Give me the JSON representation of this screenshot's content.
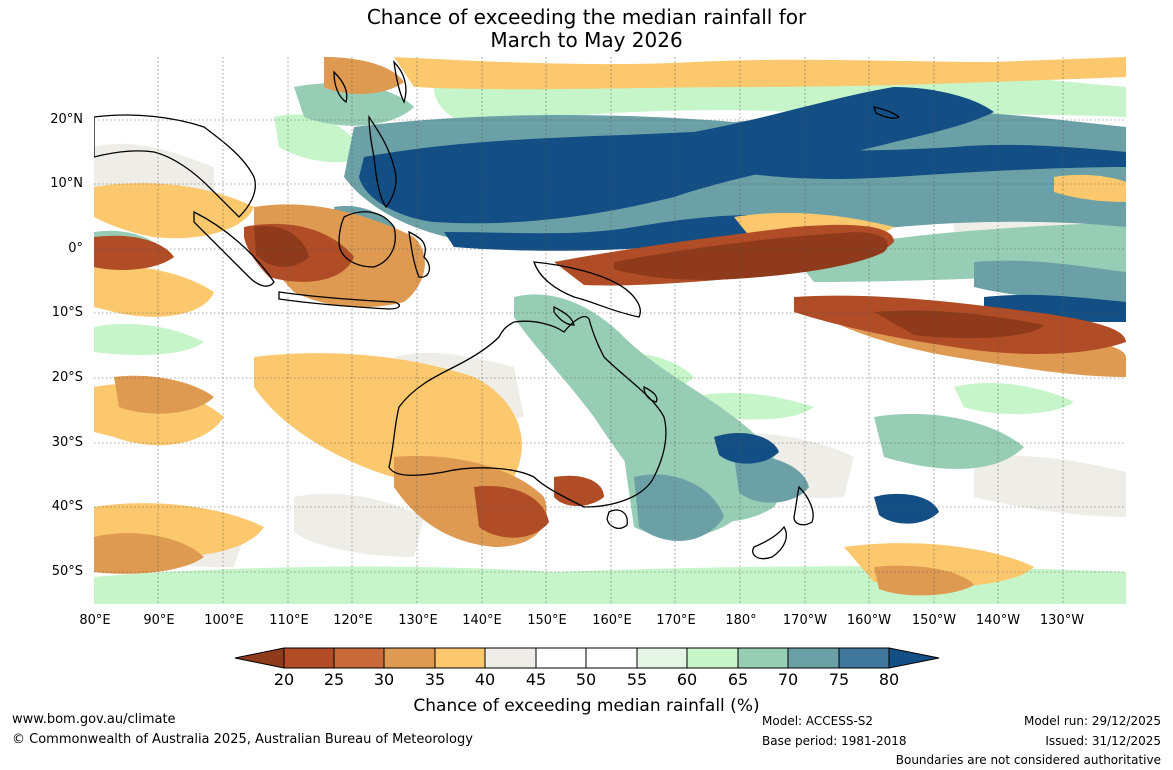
{
  "title": {
    "line1": "Chance of exceeding the median rainfall for",
    "line2": "March to May 2026"
  },
  "map": {
    "lat_labels": [
      "20°N",
      "10°N",
      "0°",
      "10°S",
      "20°S",
      "30°S",
      "40°S",
      "50°S"
    ],
    "lon_labels": [
      "80°E",
      "90°E",
      "100°E",
      "110°E",
      "120°E",
      "130°E",
      "140°E",
      "150°E",
      "160°E",
      "170°E",
      "180°",
      "170°W",
      "160°W",
      "150°W",
      "140°W",
      "130°W"
    ],
    "regions": [
      {
        "name": "central-pacific-equatorial-dry-tongue",
        "category": "20-25",
        "description": "below median"
      },
      {
        "name": "north-pacific-wet-band",
        "category": "75-80",
        "description": "above median"
      },
      {
        "name": "maritime-continent-dry",
        "category": "20-25",
        "description": "below median"
      },
      {
        "name": "southern-australia-dry",
        "category": "25-35",
        "description": "below median"
      },
      {
        "name": "coral-sea-wet",
        "category": "65-75",
        "description": "above median"
      },
      {
        "name": "new-zealand-wet",
        "category": "65-75",
        "description": "above median"
      }
    ]
  },
  "colorbar": {
    "ticks": [
      "20",
      "25",
      "30",
      "35",
      "40",
      "45",
      "50",
      "55",
      "60",
      "65",
      "70",
      "75",
      "80"
    ],
    "colors": [
      "#8f3b1b",
      "#b04d26",
      "#c8693a",
      "#df9a52",
      "#fbc86d",
      "#efede8",
      "#ffffff",
      "#ffffff",
      "#e5f5e5",
      "#c5f5c9",
      "#97cdb5",
      "#6ba0a6",
      "#3f789c",
      "#134e84"
    ],
    "title": "Chance of exceeding median rainfall (%)"
  },
  "footer": {
    "url": "www.bom.gov.au/climate",
    "copyright": "© Commonwealth of Australia 2025, Australian Bureau of Meteorology",
    "model": "Model: ACCESS-S2",
    "base_period": "Base period: 1981-2018",
    "model_run": "Model run: 29/12/2025",
    "issued": "Issued: 31/12/2025",
    "disclaimer": "Boundaries are not considered authoritative"
  }
}
